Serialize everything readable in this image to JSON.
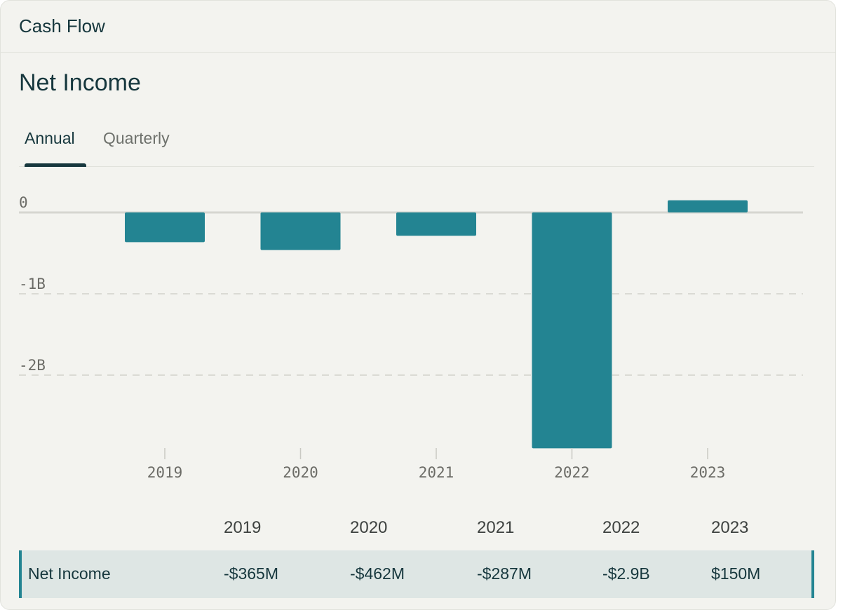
{
  "card": {
    "title": "Cash Flow"
  },
  "section": {
    "title": "Net Income"
  },
  "tabs": [
    {
      "label": "Annual",
      "active": true
    },
    {
      "label": "Quarterly",
      "active": false
    }
  ],
  "colors": {
    "bar": "#238492",
    "primary_text": "#16373d",
    "background": "#f3f3ef"
  },
  "chart_data": {
    "type": "bar",
    "categories": [
      "2019",
      "2020",
      "2021",
      "2022",
      "2023"
    ],
    "values": [
      -365,
      -462,
      -287,
      -2900,
      150
    ],
    "unit": "millions USD",
    "y_ticks": [
      {
        "value": 0,
        "label": "0"
      },
      {
        "value": -1000,
        "label": "-1B"
      },
      {
        "value": -2000,
        "label": "-2B"
      }
    ],
    "ylim": [
      -2900,
      150
    ],
    "grid": "dashed horizontal at -1B and -2B",
    "title": "",
    "xlabel": "",
    "ylabel": ""
  },
  "table": {
    "headers": [
      "2019",
      "2020",
      "2021",
      "2022",
      "2023"
    ],
    "row_label": "Net Income",
    "values": [
      "-$365M",
      "-$462M",
      "-$287M",
      "-$2.9B",
      "$150M"
    ]
  }
}
